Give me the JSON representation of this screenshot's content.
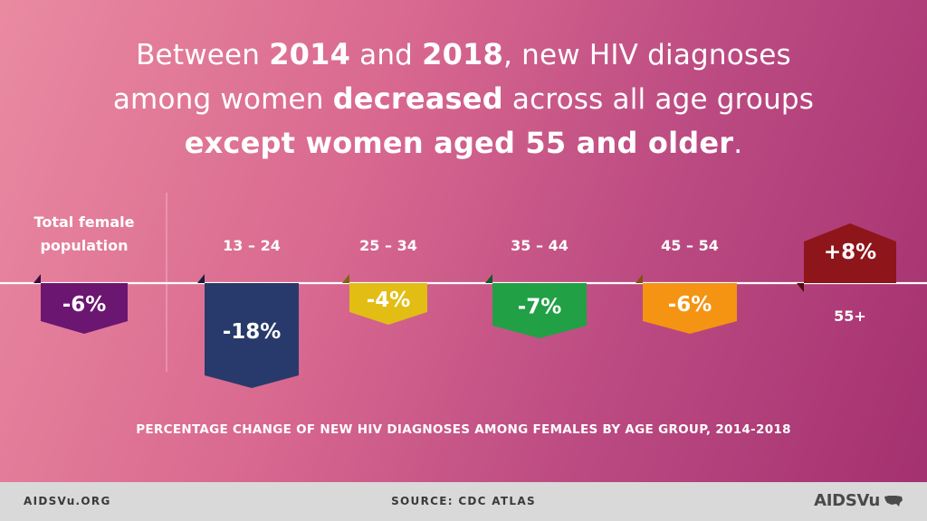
{
  "headline": {
    "l1_a": "Between ",
    "l1_b": "2014",
    "l1_c": " and ",
    "l1_d": "2018",
    "l1_e": ", new HIV diagnoses",
    "l2_a": "among women ",
    "l2_b": "decreased",
    "l2_c": " across all age groups",
    "l3_a": "except women aged 55 and older",
    "l3_b": "."
  },
  "chart_data": {
    "type": "bar",
    "title": "PERCENTAGE CHANGE OF NEW HIV DIAGNOSES AMONG FEMALES BY AGE GROUP, 2014-2018",
    "categories": [
      "Total female population",
      "13 – 24",
      "25 – 34",
      "35 – 44",
      "45 – 54",
      "55+"
    ],
    "values": [
      -6,
      -18,
      -4,
      -7,
      -6,
      8
    ],
    "labels": [
      "-6%",
      "-18%",
      "-4%",
      "-7%",
      "-6%",
      "+8%"
    ],
    "colors": [
      "#6b1670",
      "#283a6b",
      "#e2bd14",
      "#22a046",
      "#f49412",
      "#8e161b"
    ],
    "baseline": 0,
    "ylabel": "",
    "xlabel": ""
  },
  "footer": {
    "left": "AIDSVu.ORG",
    "center": "SOURCE: CDC ATLAS",
    "logo": "AIDSVu"
  },
  "colors": {
    "background_start": "#ea8aa1",
    "background_end": "#a3306f",
    "baseline": "#ffffff",
    "footer": "#d9d9d9"
  }
}
